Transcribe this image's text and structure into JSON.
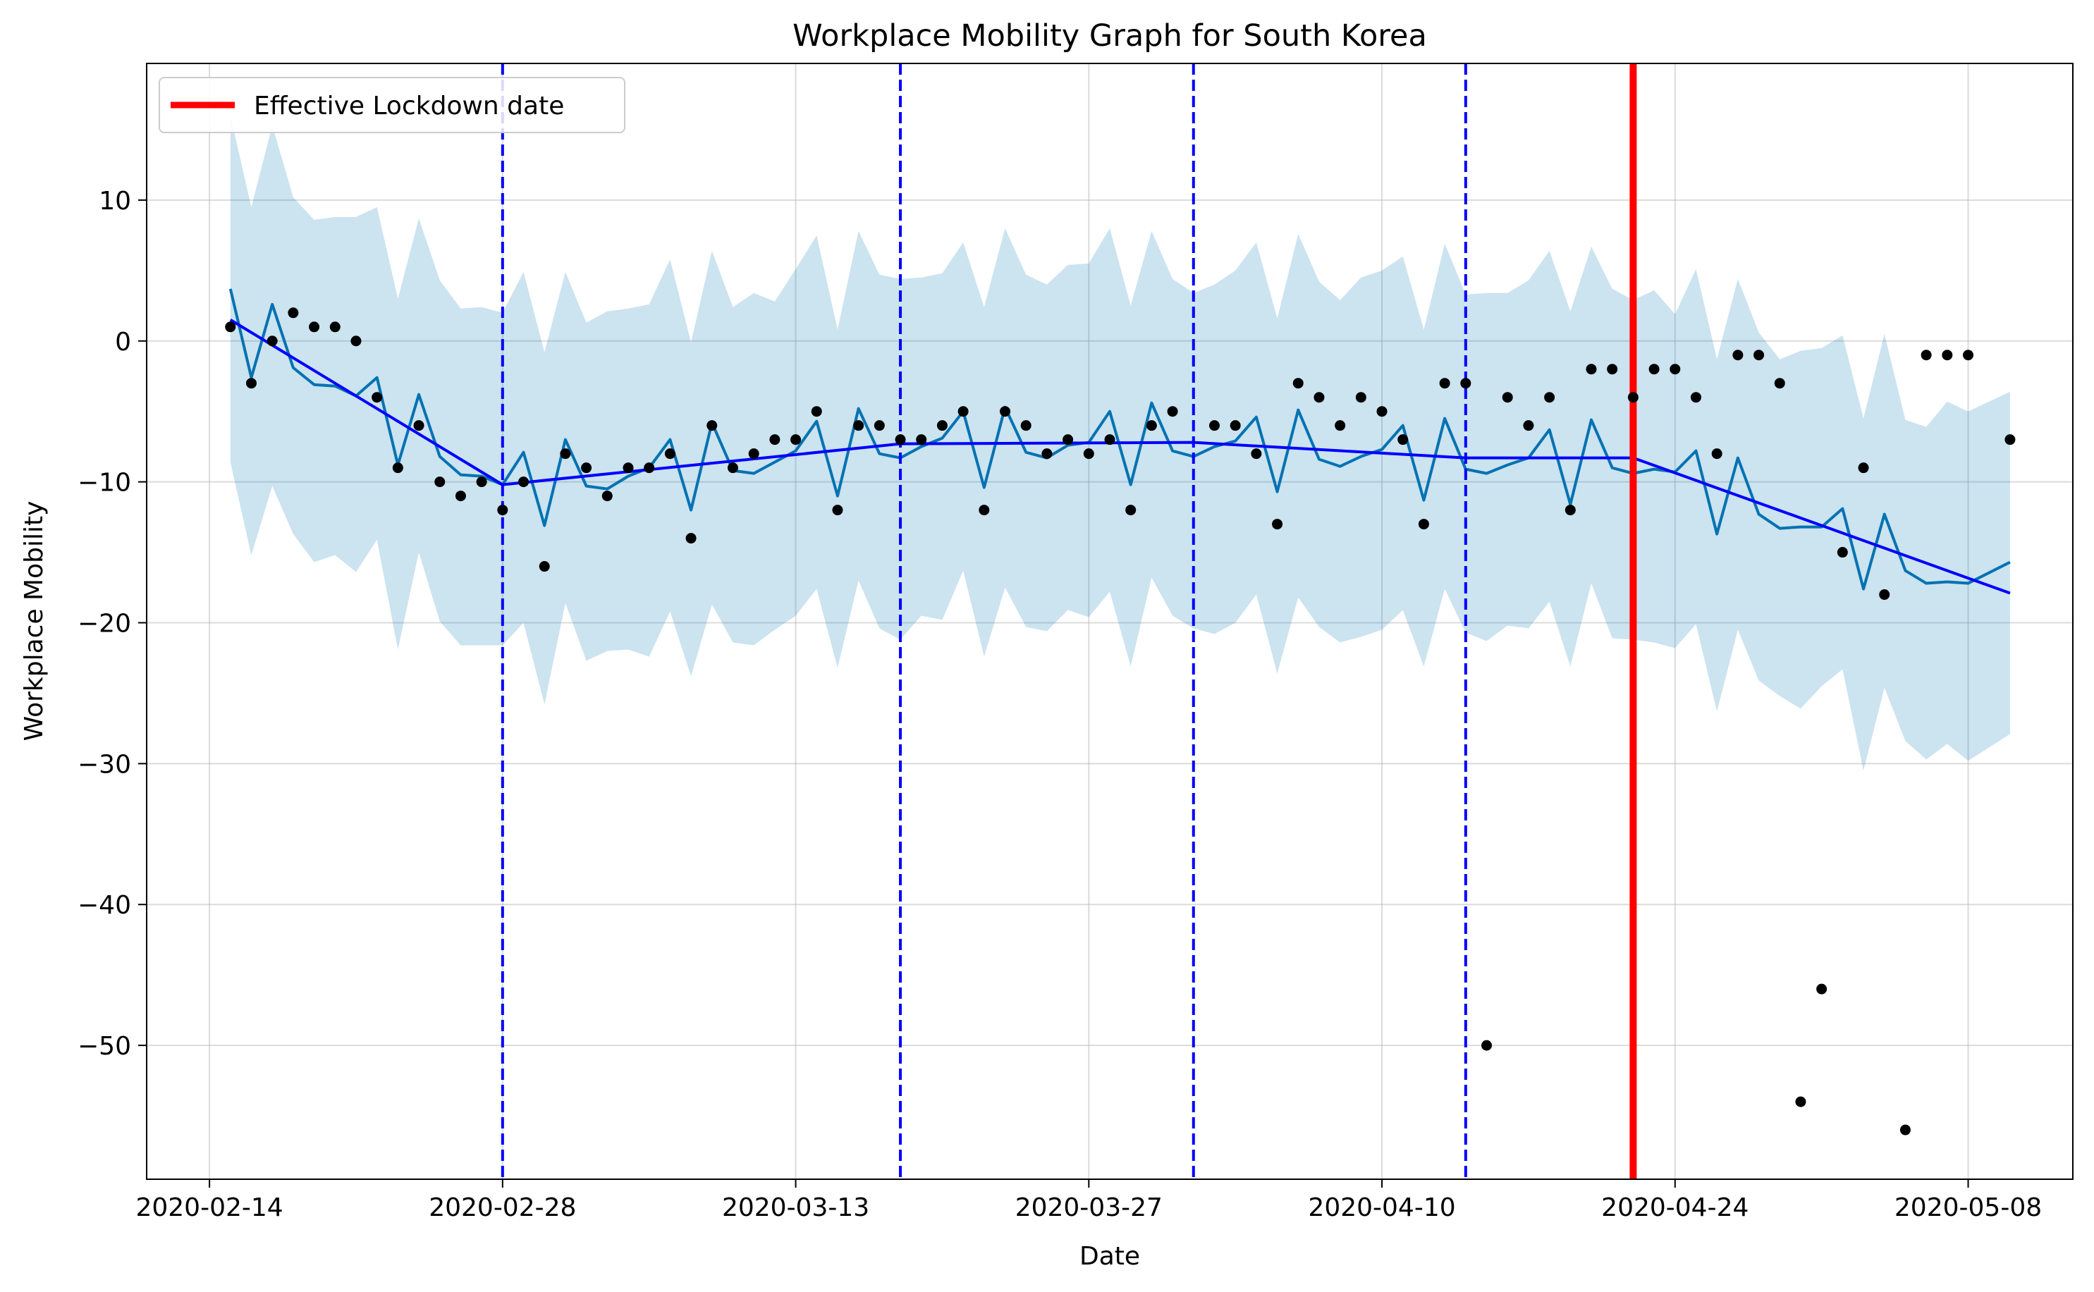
{
  "chart_data": {
    "type": "line",
    "title": "Workplace Mobility Graph for South Korea",
    "xlabel": "Date",
    "ylabel": "Workplace Mobility",
    "x_axis": {
      "type": "date",
      "range": [
        "2020-02-11",
        "2020-05-13"
      ],
      "ticks": [
        "2020-02-14",
        "2020-02-28",
        "2020-03-13",
        "2020-03-27",
        "2020-04-10",
        "2020-04-24",
        "2020-05-08"
      ]
    },
    "y_axis": {
      "range": [
        -59.5,
        19.7
      ],
      "ticks": [
        10,
        0,
        -10,
        -20,
        -30,
        -40,
        -50
      ],
      "tick_labels": [
        "10",
        "0",
        "−10",
        "−20",
        "−30",
        "−40",
        "−50"
      ]
    },
    "grid": true,
    "legend": {
      "placement": "top-left",
      "entries": [
        {
          "label": "Effective Lockdown date",
          "color": "#ff0000"
        }
      ]
    },
    "colors": {
      "observed": "#000000",
      "forecast": "#0072b2",
      "trend": "#0000ff",
      "uncertainty": "#0072b2",
      "changepoints": "#0000ff",
      "lockdown": "#ff0000"
    },
    "start_date": "2020-02-15",
    "dates": [
      "2020-02-15",
      "2020-02-16",
      "2020-02-17",
      "2020-02-18",
      "2020-02-19",
      "2020-02-20",
      "2020-02-21",
      "2020-02-22",
      "2020-02-23",
      "2020-02-24",
      "2020-02-25",
      "2020-02-26",
      "2020-02-27",
      "2020-02-28",
      "2020-02-29",
      "2020-03-01",
      "2020-03-02",
      "2020-03-03",
      "2020-03-04",
      "2020-03-05",
      "2020-03-06",
      "2020-03-07",
      "2020-03-08",
      "2020-03-09",
      "2020-03-10",
      "2020-03-11",
      "2020-03-12",
      "2020-03-13",
      "2020-03-14",
      "2020-03-15",
      "2020-03-16",
      "2020-03-17",
      "2020-03-18",
      "2020-03-19",
      "2020-03-20",
      "2020-03-21",
      "2020-03-22",
      "2020-03-23",
      "2020-03-24",
      "2020-03-25",
      "2020-03-26",
      "2020-03-27",
      "2020-03-28",
      "2020-03-29",
      "2020-03-30",
      "2020-03-31",
      "2020-04-01",
      "2020-04-02",
      "2020-04-03",
      "2020-04-04",
      "2020-04-05",
      "2020-04-06",
      "2020-04-07",
      "2020-04-08",
      "2020-04-09",
      "2020-04-10",
      "2020-04-11",
      "2020-04-12",
      "2020-04-13",
      "2020-04-14",
      "2020-04-15",
      "2020-04-16",
      "2020-04-17",
      "2020-04-18",
      "2020-04-19",
      "2020-04-20",
      "2020-04-21",
      "2020-04-22",
      "2020-04-23",
      "2020-04-24",
      "2020-04-25",
      "2020-04-26",
      "2020-04-27",
      "2020-04-28",
      "2020-04-29",
      "2020-04-30",
      "2020-05-01",
      "2020-05-02",
      "2020-05-03",
      "2020-05-04",
      "2020-05-05",
      "2020-05-06",
      "2020-05-07",
      "2020-05-08",
      "2020-05-09",
      "2020-05-10"
    ],
    "series": [
      {
        "name": "observed",
        "type": "scatter",
        "values": [
          1,
          -3,
          0,
          2,
          1,
          1,
          0,
          -4,
          -9,
          -6,
          -10,
          -11,
          -10,
          -12,
          -10,
          -16,
          -8,
          -9,
          -11,
          -9,
          -9,
          -8,
          -14,
          -6,
          -9,
          -8,
          -7,
          -7,
          -5,
          -12,
          -6,
          -6,
          -7,
          -7,
          -6,
          -5,
          -12,
          -5,
          -6,
          -8,
          -7,
          -8,
          -7,
          -12,
          -6,
          -5,
          null,
          -6,
          -6,
          -8,
          -13,
          -3,
          -4,
          -6,
          -4,
          -5,
          -7,
          -13,
          -3,
          -3,
          -50,
          -4,
          -6,
          -4,
          -12,
          -2,
          -2,
          -4,
          -2,
          -2,
          -4,
          -8,
          -1,
          -1,
          -3,
          -54,
          -46,
          -15,
          -9,
          -18,
          -56,
          -1,
          -1,
          -1,
          null,
          -7
        ]
      },
      {
        "name": "forecast",
        "type": "line",
        "values": [
          3.7,
          -2.6,
          2.6,
          -1.9,
          -3.1,
          -3.2,
          -3.9,
          -2.6,
          -8.8,
          -3.8,
          -8.2,
          -9.5,
          -9.6,
          -10.2,
          -7.9,
          -13.1,
          -7.0,
          -10.3,
          -10.5,
          -9.6,
          -9.0,
          -7.0,
          -12.0,
          -5.8,
          -9.2,
          -9.4,
          -8.6,
          -7.8,
          -5.7,
          -11.0,
          -4.8,
          -8.0,
          -8.3,
          -7.5,
          -6.9,
          -5.0,
          -10.4,
          -4.7,
          -7.9,
          -8.3,
          -7.4,
          -7.2,
          -5.0,
          -10.2,
          -4.4,
          -7.8,
          -8.2,
          -7.5,
          -7.1,
          -5.4,
          -10.7,
          -4.9,
          -8.4,
          -8.9,
          -8.2,
          -7.7,
          -6.0,
          -11.3,
          -5.5,
          -9.1,
          -9.4,
          -8.8,
          -8.3,
          -6.3,
          -11.6,
          -5.6,
          -9.0,
          -9.4,
          -9.1,
          -9.3,
          -7.8,
          -13.7,
          -8.3,
          -12.3,
          -13.3,
          -13.2,
          -13.2,
          -11.9,
          -17.6,
          -12.3,
          -16.3,
          -17.2,
          -17.1,
          -17.2,
          null,
          -15.7
        ]
      },
      {
        "name": "uncertainty_upper",
        "type": "area",
        "values": [
          16.0,
          9.5,
          15.3,
          10.2,
          8.6,
          8.8,
          8.8,
          9.5,
          3.0,
          8.7,
          4.3,
          2.3,
          2.4,
          2.0,
          4.9,
          -0.8,
          4.9,
          1.3,
          2.1,
          2.3,
          2.6,
          5.8,
          -0.1,
          6.4,
          2.4,
          3.4,
          2.8,
          5.1,
          7.5,
          0.8,
          7.8,
          4.7,
          4.4,
          4.5,
          4.8,
          7.0,
          2.4,
          8.0,
          4.7,
          4.0,
          5.4,
          5.5,
          8.0,
          2.5,
          7.8,
          4.4,
          3.4,
          4.0,
          5.0,
          7.0,
          1.6,
          7.6,
          4.2,
          2.9,
          4.5,
          5.0,
          6.0,
          0.8,
          6.9,
          3.3,
          3.4,
          3.4,
          4.3,
          6.4,
          2.1,
          6.7,
          3.7,
          2.9,
          3.6,
          1.9,
          5.1,
          -1.3,
          4.4,
          0.6,
          -1.3,
          -0.7,
          -0.5,
          0.4,
          -5.5,
          0.5,
          -5.6,
          -6.1,
          -4.3,
          -5.0,
          null,
          -3.6
        ]
      },
      {
        "name": "uncertainty_lower",
        "type": "area",
        "values": [
          -8.6,
          -15.2,
          -10.3,
          -13.7,
          -15.7,
          -15.2,
          -16.4,
          -14.1,
          -21.9,
          -15.0,
          -19.9,
          -21.6,
          -21.6,
          -21.6,
          -20.0,
          -25.8,
          -18.6,
          -22.7,
          -22.0,
          -21.9,
          -22.4,
          -19.2,
          -23.8,
          -18.7,
          -21.4,
          -21.6,
          -20.5,
          -19.5,
          -17.6,
          -23.2,
          -17.0,
          -20.4,
          -21.2,
          -19.5,
          -19.8,
          -16.3,
          -22.4,
          -17.5,
          -20.3,
          -20.6,
          -19.1,
          -19.6,
          -17.8,
          -23.1,
          -16.8,
          -19.5,
          -20.4,
          -20.8,
          -20.0,
          -18.0,
          -23.6,
          -18.2,
          -20.3,
          -21.4,
          -21.0,
          -20.5,
          -19.1,
          -23.1,
          -17.6,
          -20.7,
          -21.3,
          -20.2,
          -20.4,
          -18.5,
          -23.1,
          -17.2,
          -21.1,
          -21.2,
          -21.4,
          -21.8,
          -20.1,
          -26.3,
          -20.5,
          -24.1,
          -25.2,
          -26.1,
          -24.5,
          -23.3,
          -30.5,
          -24.6,
          -28.4,
          -29.7,
          -28.6,
          -29.8,
          null,
          -27.9
        ]
      }
    ],
    "trend": {
      "name": "trend",
      "points": [
        {
          "x": "2020-02-15",
          "y": 1.5
        },
        {
          "x": "2020-02-28",
          "y": -10.2
        },
        {
          "x": "2020-03-18",
          "y": -7.3
        },
        {
          "x": "2020-04-01",
          "y": -7.2
        },
        {
          "x": "2020-04-14",
          "y": -8.3
        },
        {
          "x": "2020-04-22",
          "y": -8.3
        },
        {
          "x": "2020-05-10",
          "y": -17.9
        }
      ]
    },
    "changepoints": [
      "2020-02-28",
      "2020-03-18",
      "2020-04-01",
      "2020-04-14"
    ],
    "lockdown_date": "2020-04-22"
  }
}
